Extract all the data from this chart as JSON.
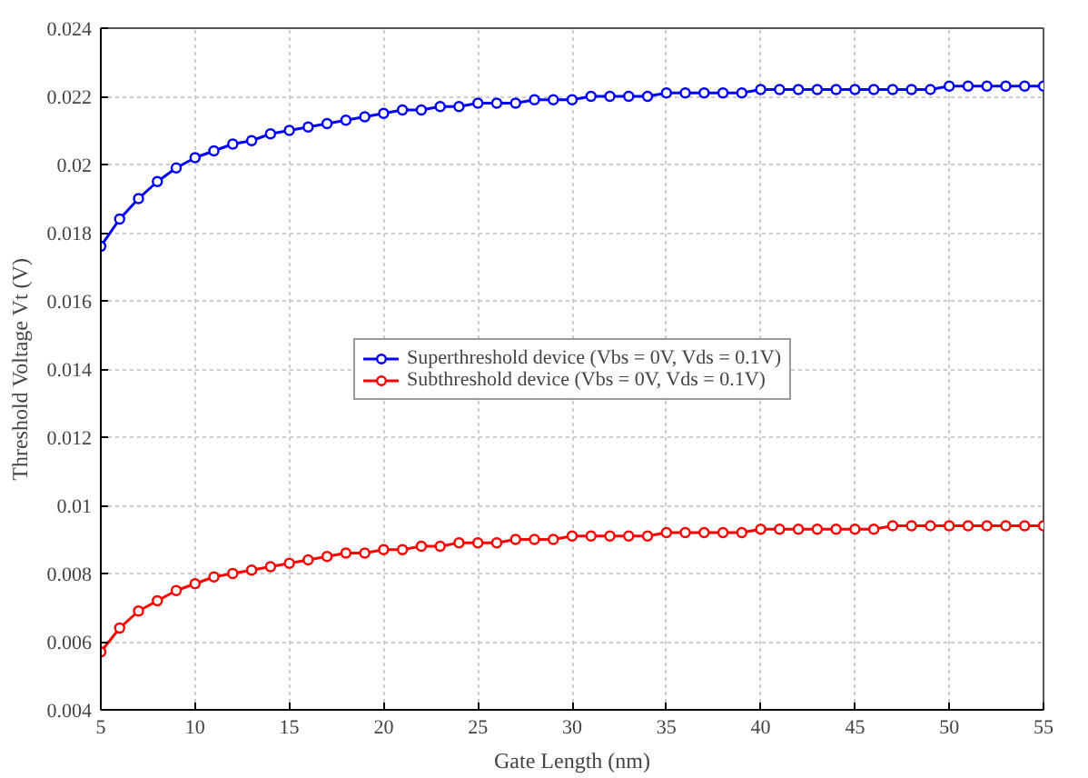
{
  "chart_data": {
    "type": "line",
    "xlabel": "Gate Length (nm)",
    "ylabel": "Threshold Voltage Vt (V)",
    "x": [
      5,
      6,
      7,
      8,
      9,
      10,
      11,
      12,
      13,
      14,
      15,
      16,
      17,
      18,
      19,
      20,
      21,
      22,
      23,
      24,
      25,
      26,
      27,
      28,
      29,
      30,
      31,
      32,
      33,
      34,
      35,
      36,
      37,
      38,
      39,
      40,
      41,
      42,
      43,
      44,
      45,
      46,
      47,
      48,
      49,
      50,
      51,
      52,
      53,
      54,
      55
    ],
    "series": [
      {
        "name": "Superthreshold device (Vbs = 0V, Vds = 0.1V)",
        "color": "#0000ff",
        "values": [
          0.0176,
          0.0184,
          0.019,
          0.0195,
          0.0199,
          0.0202,
          0.0204,
          0.0206,
          0.0207,
          0.0209,
          0.021,
          0.0211,
          0.0212,
          0.0213,
          0.0214,
          0.0215,
          0.0216,
          0.0216,
          0.0217,
          0.0217,
          0.0218,
          0.0218,
          0.0218,
          0.0219,
          0.0219,
          0.0219,
          0.022,
          0.022,
          0.022,
          0.022,
          0.0221,
          0.0221,
          0.0221,
          0.0221,
          0.0221,
          0.0222,
          0.0222,
          0.0222,
          0.0222,
          0.0222,
          0.0222,
          0.0222,
          0.0222,
          0.0222,
          0.0222,
          0.0223,
          0.0223,
          0.0223,
          0.0223,
          0.0223,
          0.0223
        ]
      },
      {
        "name": "Subthreshold device (Vbs = 0V, Vds = 0.1V)",
        "color": "#ff0000",
        "values": [
          0.0057,
          0.0064,
          0.0069,
          0.0072,
          0.0075,
          0.0077,
          0.0079,
          0.008,
          0.0081,
          0.0082,
          0.0083,
          0.0084,
          0.0085,
          0.0086,
          0.0086,
          0.0087,
          0.0087,
          0.0088,
          0.0088,
          0.0089,
          0.0089,
          0.0089,
          0.009,
          0.009,
          0.009,
          0.0091,
          0.0091,
          0.0091,
          0.0091,
          0.0091,
          0.0092,
          0.0092,
          0.0092,
          0.0092,
          0.0092,
          0.0093,
          0.0093,
          0.0093,
          0.0093,
          0.0093,
          0.0093,
          0.0093,
          0.0094,
          0.0094,
          0.0094,
          0.0094,
          0.0094,
          0.0094,
          0.0094,
          0.0094,
          0.0094
        ]
      }
    ],
    "xlim": [
      5,
      55
    ],
    "xticks": [
      5,
      10,
      15,
      20,
      25,
      30,
      35,
      40,
      45,
      50,
      55
    ],
    "ylim": [
      0.004,
      0.024
    ],
    "yticks": [
      0.004,
      0.006,
      0.008,
      0.01,
      0.012,
      0.014,
      0.016,
      0.018,
      0.02,
      0.022,
      0.024
    ],
    "grid": true,
    "legend": "center",
    "marker": "circle",
    "line_style": "solid"
  }
}
